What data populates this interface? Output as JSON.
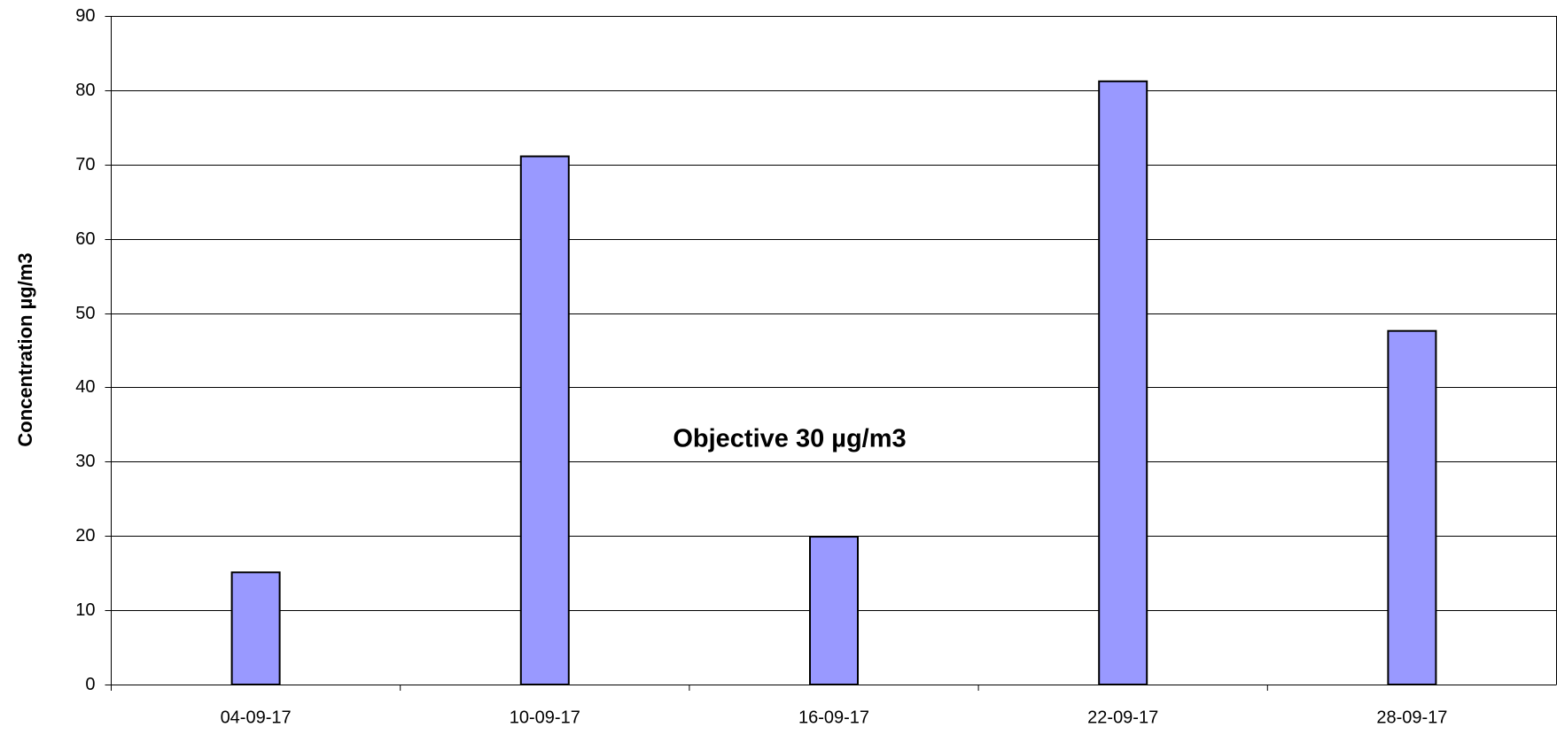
{
  "chart_data": {
    "type": "bar",
    "y_label": "Concentration µg/m3",
    "annotation": "Objective 30 µg/m3",
    "categories": [
      "04-09-17",
      "10-09-17",
      "16-09-17",
      "22-09-17",
      "28-09-17"
    ],
    "values": [
      15.1,
      71.1,
      19.9,
      81.2,
      47.6
    ],
    "color": "#9999ff",
    "ylim": [
      0,
      90
    ],
    "yticks": [
      0,
      10,
      20,
      30,
      40,
      50,
      60,
      70,
      80,
      90
    ],
    "grid": true
  }
}
